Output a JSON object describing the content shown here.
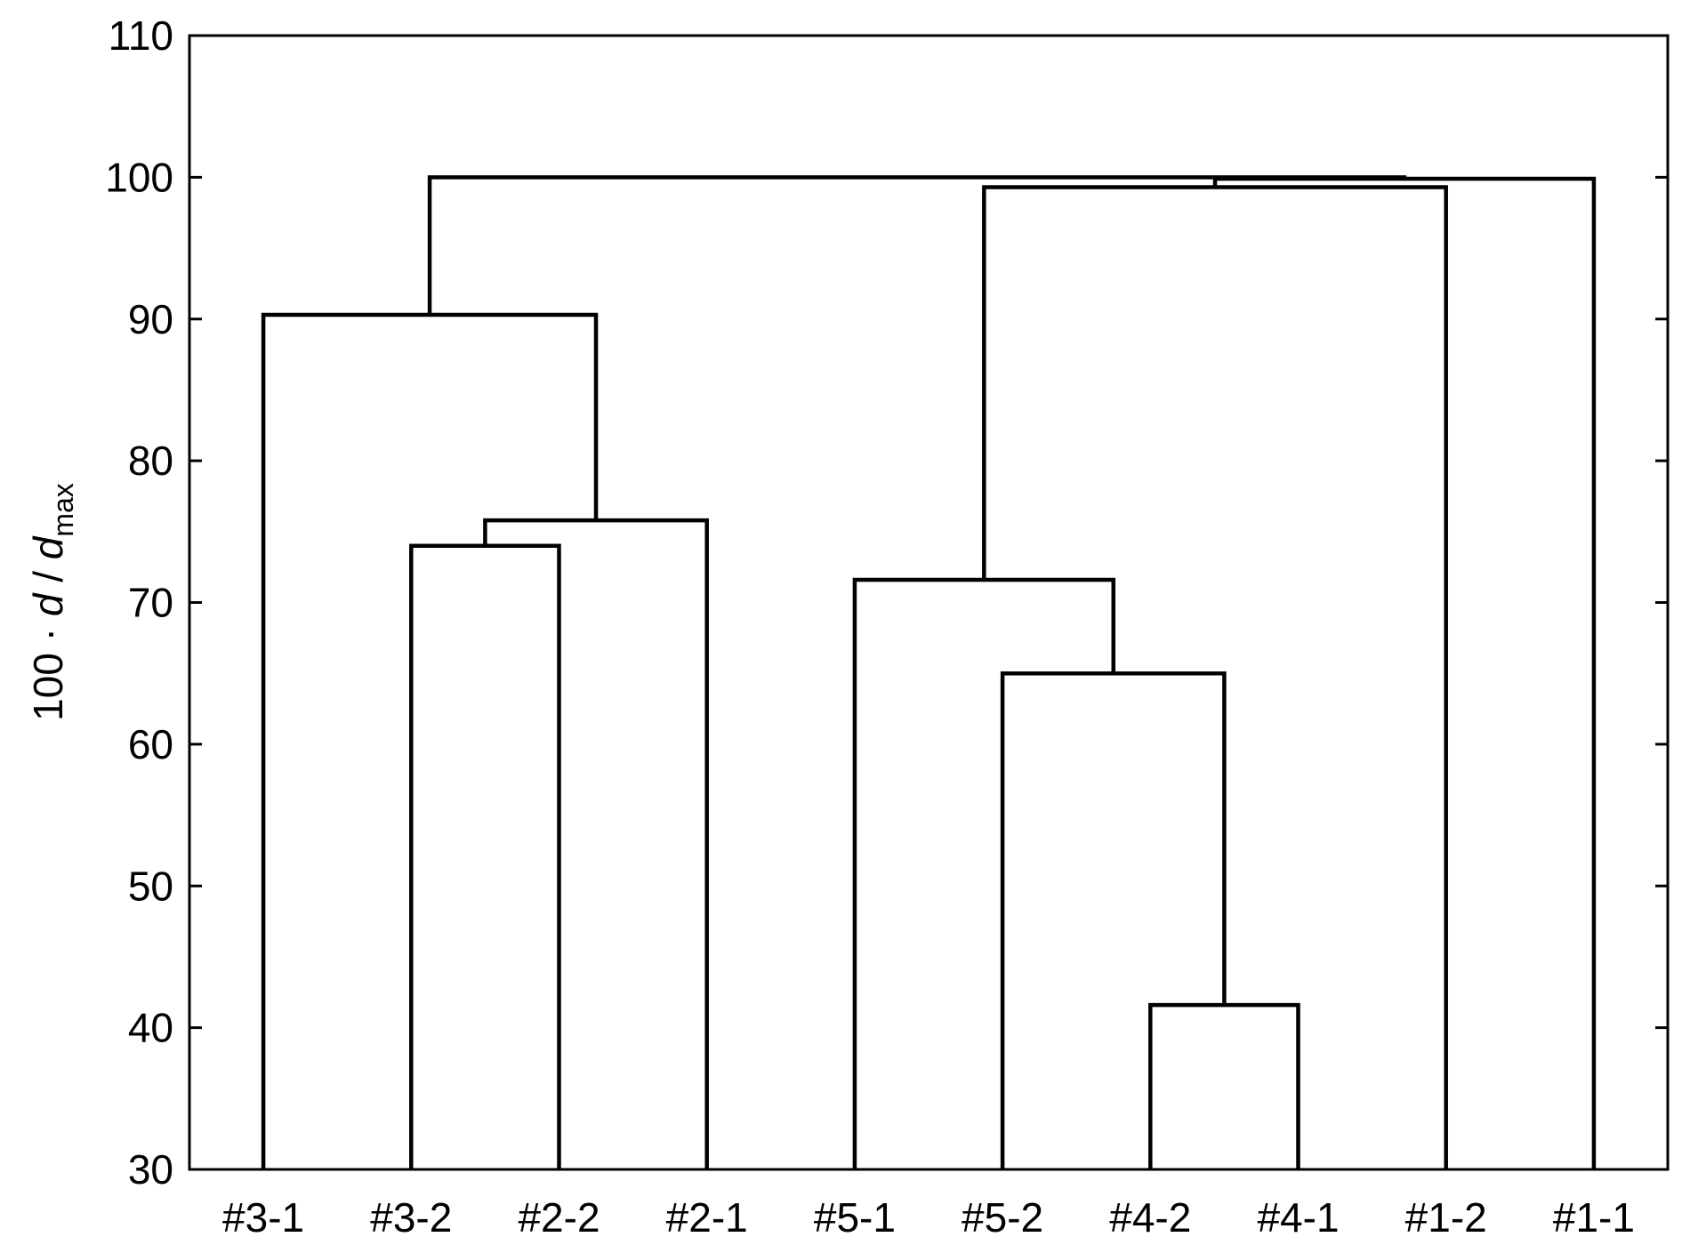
{
  "chart_data": {
    "type": "dendrogram",
    "ylabel": {
      "prefix": "100 · ",
      "var1": "d",
      "sep": " / ",
      "var2": "d",
      "subscript": "max"
    },
    "ylim": [
      30,
      110
    ],
    "yticks": [
      30,
      40,
      50,
      60,
      70,
      80,
      90,
      100,
      110
    ],
    "leaves": [
      "#3-1",
      "#3-2",
      "#2-2",
      "#2-1",
      "#5-1",
      "#5-2",
      "#4-2",
      "#4-1",
      "#1-2",
      "#1-1"
    ],
    "merges": [
      {
        "name": "m1",
        "left": "#4-2",
        "right": "#4-1",
        "height": 41.6
      },
      {
        "name": "m2",
        "left": "#5-2",
        "right": "m1",
        "height": 65.0
      },
      {
        "name": "m3",
        "left": "#5-1",
        "right": "m2",
        "height": 71.6
      },
      {
        "name": "m4",
        "left": "#3-2",
        "right": "#2-2",
        "height": 74.0
      },
      {
        "name": "m5",
        "left": "m4",
        "right": "#2-1",
        "height": 75.8
      },
      {
        "name": "m6",
        "left": "#3-1",
        "right": "m5",
        "height": 90.3
      },
      {
        "name": "m7",
        "left": "m3",
        "right": "#1-2",
        "height": 99.3
      },
      {
        "name": "m8",
        "left": "m7",
        "right": "#1-1",
        "height": 99.9
      },
      {
        "name": "m9",
        "left": "m6",
        "right": "m8",
        "height": 100.0
      }
    ],
    "grid": false,
    "legend": "none",
    "line_color": "#000000"
  }
}
